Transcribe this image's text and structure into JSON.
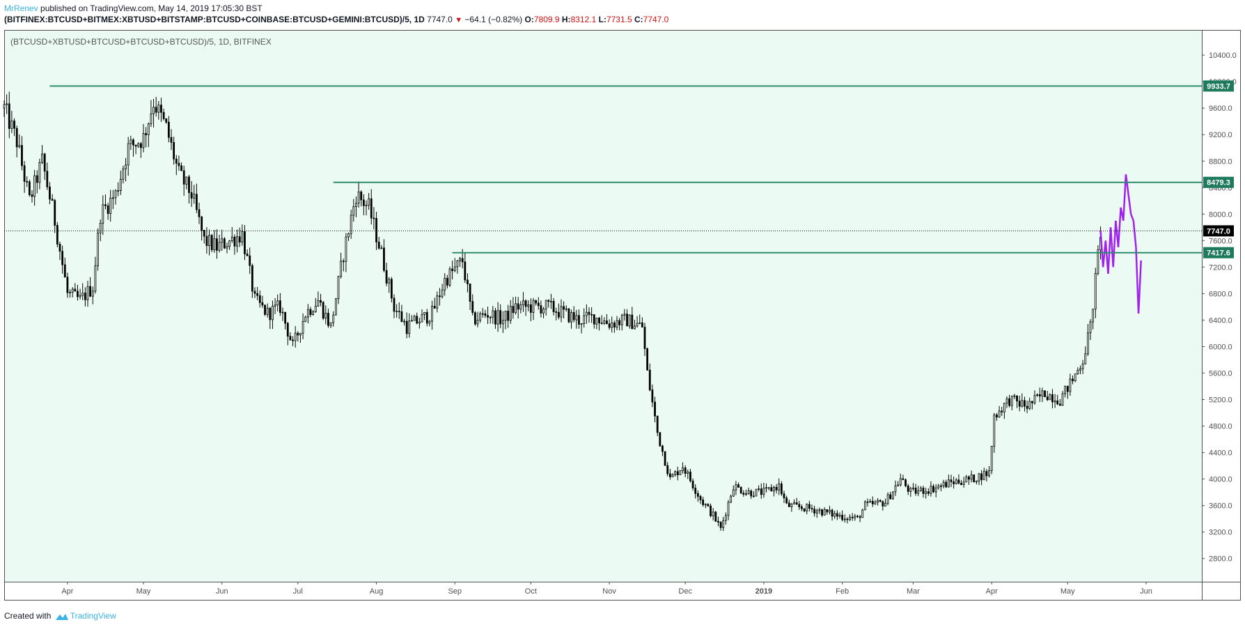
{
  "header": {
    "author": "MrRenev",
    "published_text": " published on TradingView.com, May 14, 2019 17:05:30 BST",
    "symbol_line": "(BITFINEX:BTCUSD+BITMEX:XBTUSD+BITSTAMP:BTCUSD+COINBASE:BTCUSD+GEMINI:BTCUSD)/5, 1D",
    "last_price": "7747.0",
    "direction_icon": "down-triangle-icon",
    "change": "−64.1 (−0.82%)",
    "o_label": "O:",
    "o_value": "7809.9",
    "h_label": "H:",
    "h_value": "8312.1",
    "l_label": "L:",
    "l_value": "7731.5",
    "c_label": "C:",
    "c_value": "7747.0"
  },
  "footer": {
    "created_with": "Created with",
    "brand": "TradingView",
    "logo_icon": "tradingview-logo-icon"
  },
  "colors": {
    "background": "#ebfbf3",
    "candle": "#000000",
    "projection": "#a020f0",
    "level_line": "#2c8c6c",
    "level_label_bg": "#1e7a5c",
    "price_label_bg": "#000000",
    "author": "#3bb3e4",
    "negative": "#d01010"
  },
  "chart_data": {
    "type": "candlestick",
    "legend": "(BTCUSD+XBTUSD+BTCUSD+BTCUSD+BTCUSD)/5, 1D, BITFINEX",
    "y_range": [
      2450,
      10780
    ],
    "y_ticks": [
      "2800.0",
      "3200.0",
      "3600.0",
      "4000.0",
      "4400.0",
      "4800.0",
      "5200.0",
      "5600.0",
      "6000.0",
      "6400.0",
      "6800.0",
      "7200.0",
      "7600.0",
      "8000.0",
      "8400.0",
      "8800.0",
      "9200.0",
      "9600.0",
      "10000.0",
      "10400.0"
    ],
    "x_ticks": [
      {
        "label": "Apr",
        "date": "2018-04-01"
      },
      {
        "label": "May",
        "date": "2018-05-01"
      },
      {
        "label": "Jun",
        "date": "2018-06-01"
      },
      {
        "label": "Jul",
        "date": "2018-07-01"
      },
      {
        "label": "Aug",
        "date": "2018-08-01"
      },
      {
        "label": "Sep",
        "date": "2018-09-01"
      },
      {
        "label": "Oct",
        "date": "2018-10-01"
      },
      {
        "label": "Nov",
        "date": "2018-11-01"
      },
      {
        "label": "Dec",
        "date": "2018-12-01"
      },
      {
        "label": "2019",
        "date": "2019-01-01",
        "bold": true
      },
      {
        "label": "Feb",
        "date": "2019-02-01"
      },
      {
        "label": "Mar",
        "date": "2019-03-01"
      },
      {
        "label": "Apr",
        "date": "2019-04-01"
      },
      {
        "label": "May",
        "date": "2019-05-01"
      },
      {
        "label": "Jun",
        "date": "2019-06-01"
      }
    ],
    "x_range": [
      "2018-03-07",
      "2019-06-23"
    ],
    "levels": [
      {
        "value": 9933.7,
        "label": "9933.7",
        "from": "2018-03-25"
      },
      {
        "value": 8479.3,
        "label": "8479.3",
        "from": "2018-07-15"
      },
      {
        "value": 7417.6,
        "label": "7417.6",
        "from": "2018-08-31"
      }
    ],
    "last_price": {
      "value": 7747.0,
      "label": "7747.0"
    },
    "price_path": [
      [
        "2018-03-07",
        9600
      ],
      [
        "2018-03-12",
        9100
      ],
      [
        "2018-03-17",
        8200
      ],
      [
        "2018-03-22",
        8800
      ],
      [
        "2018-03-27",
        7900
      ],
      [
        "2018-04-01",
        6800
      ],
      [
        "2018-04-06",
        6700
      ],
      [
        "2018-04-11",
        6900
      ],
      [
        "2018-04-14",
        8000
      ],
      [
        "2018-04-20",
        8300
      ],
      [
        "2018-04-25",
        9000
      ],
      [
        "2018-05-01",
        9150
      ],
      [
        "2018-05-05",
        9700
      ],
      [
        "2018-05-10",
        9300
      ],
      [
        "2018-05-15",
        8600
      ],
      [
        "2018-05-20",
        8300
      ],
      [
        "2018-05-25",
        7600
      ],
      [
        "2018-05-30",
        7500
      ],
      [
        "2018-06-04",
        7600
      ],
      [
        "2018-06-09",
        7700
      ],
      [
        "2018-06-14",
        6700
      ],
      [
        "2018-06-19",
        6500
      ],
      [
        "2018-06-24",
        6600
      ],
      [
        "2018-06-29",
        6000
      ],
      [
        "2018-07-04",
        6500
      ],
      [
        "2018-07-09",
        6700
      ],
      [
        "2018-07-14",
        6300
      ],
      [
        "2018-07-19",
        7400
      ],
      [
        "2018-07-24",
        8300
      ],
      [
        "2018-07-29",
        8100
      ],
      [
        "2018-08-03",
        7400
      ],
      [
        "2018-08-08",
        6600
      ],
      [
        "2018-08-13",
        6300
      ],
      [
        "2018-08-18",
        6400
      ],
      [
        "2018-08-23",
        6500
      ],
      [
        "2018-08-28",
        7000
      ],
      [
        "2018-09-04",
        7300
      ],
      [
        "2018-09-08",
        6400
      ],
      [
        "2018-09-14",
        6500
      ],
      [
        "2018-09-20",
        6400
      ],
      [
        "2018-09-25",
        6600
      ],
      [
        "2018-10-01",
        6600
      ],
      [
        "2018-10-08",
        6600
      ],
      [
        "2018-10-14",
        6500
      ],
      [
        "2018-10-20",
        6400
      ],
      [
        "2018-10-26",
        6450
      ],
      [
        "2018-11-01",
        6350
      ],
      [
        "2018-11-08",
        6400
      ],
      [
        "2018-11-14",
        6300
      ],
      [
        "2018-11-16",
        5600
      ],
      [
        "2018-11-20",
        4700
      ],
      [
        "2018-11-25",
        4000
      ],
      [
        "2018-11-30",
        4200
      ],
      [
        "2018-12-07",
        3700
      ],
      [
        "2018-12-12",
        3450
      ],
      [
        "2018-12-15",
        3250
      ],
      [
        "2018-12-20",
        3900
      ],
      [
        "2018-12-25",
        3800
      ],
      [
        "2019-01-01",
        3800
      ],
      [
        "2019-01-07",
        3900
      ],
      [
        "2019-01-10",
        3600
      ],
      [
        "2019-01-20",
        3550
      ],
      [
        "2019-01-30",
        3450
      ],
      [
        "2019-02-07",
        3400
      ],
      [
        "2019-02-10",
        3600
      ],
      [
        "2019-02-18",
        3650
      ],
      [
        "2019-02-24",
        4000
      ],
      [
        "2019-02-28",
        3800
      ],
      [
        "2019-03-08",
        3850
      ],
      [
        "2019-03-16",
        3950
      ],
      [
        "2019-03-24",
        4000
      ],
      [
        "2019-03-31",
        4100
      ],
      [
        "2019-04-02",
        4950
      ],
      [
        "2019-04-08",
        5200
      ],
      [
        "2019-04-15",
        5100
      ],
      [
        "2019-04-22",
        5300
      ],
      [
        "2019-04-28",
        5200
      ],
      [
        "2019-05-03",
        5500
      ],
      [
        "2019-05-07",
        5800
      ],
      [
        "2019-05-10",
        6300
      ],
      [
        "2019-05-12",
        7000
      ],
      [
        "2019-05-14",
        7747
      ]
    ],
    "projection_path": [
      [
        "2019-05-14",
        7750
      ],
      [
        "2019-05-15",
        7200
      ],
      [
        "2019-05-16",
        7600
      ],
      [
        "2019-05-17",
        7100
      ],
      [
        "2019-05-18",
        7800
      ],
      [
        "2019-05-19",
        7200
      ],
      [
        "2019-05-20",
        7900
      ],
      [
        "2019-05-21",
        7500
      ],
      [
        "2019-05-22",
        8100
      ],
      [
        "2019-05-23",
        7900
      ],
      [
        "2019-05-24",
        8600
      ],
      [
        "2019-05-25",
        8300
      ],
      [
        "2019-05-26",
        8000
      ],
      [
        "2019-05-27",
        7900
      ],
      [
        "2019-05-28",
        7500
      ],
      [
        "2019-05-29",
        6500
      ],
      [
        "2019-05-30",
        7300
      ]
    ]
  }
}
